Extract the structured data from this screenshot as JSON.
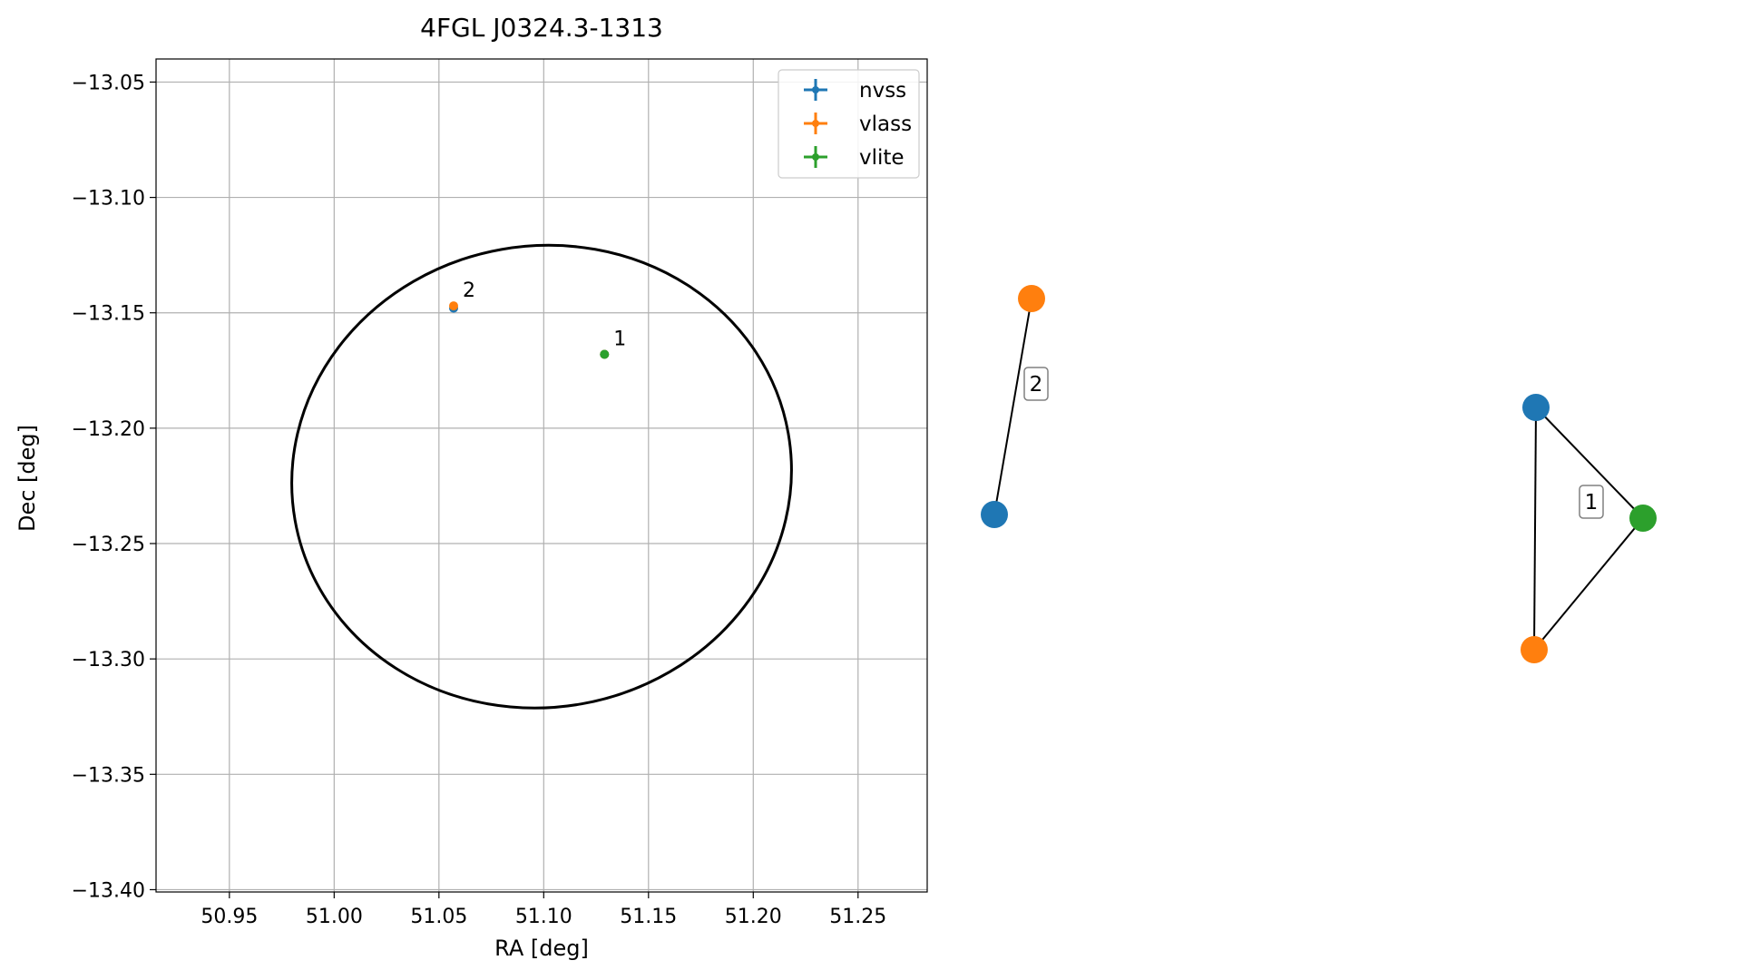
{
  "chart_data": [
    {
      "type": "scatter",
      "title": "4FGL J0324.3-1313",
      "xlabel": "RA [deg]",
      "ylabel": "Dec [deg]",
      "xlim": [
        50.915,
        51.283
      ],
      "ylim": [
        -13.401,
        -13.04
      ],
      "grid": true,
      "legend_position": "top-right",
      "x_ticks": [
        {
          "value": 50.95,
          "label": "50.95"
        },
        {
          "value": 51.0,
          "label": "51.00"
        },
        {
          "value": 51.05,
          "label": "51.05"
        },
        {
          "value": 51.1,
          "label": "51.10"
        },
        {
          "value": 51.15,
          "label": "51.15"
        },
        {
          "value": 51.2,
          "label": "51.20"
        },
        {
          "value": 51.25,
          "label": "51.25"
        }
      ],
      "y_ticks": [
        {
          "value": -13.05,
          "label": "−13.05"
        },
        {
          "value": -13.1,
          "label": "−13.10"
        },
        {
          "value": -13.15,
          "label": "−13.15"
        },
        {
          "value": -13.2,
          "label": "−13.20"
        },
        {
          "value": -13.25,
          "label": "−13.25"
        },
        {
          "value": -13.3,
          "label": "−13.30"
        },
        {
          "value": -13.35,
          "label": "−13.35"
        },
        {
          "value": -13.4,
          "label": "−13.40"
        }
      ],
      "series": [
        {
          "name": "nvss",
          "color": "#1f77b4",
          "points": [
            {
              "x": 51.057,
              "y": -13.148
            },
            {
              "x": 51.129,
              "y": -13.168
            }
          ]
        },
        {
          "name": "vlass",
          "color": "#ff7f0e",
          "points": [
            {
              "x": 51.057,
              "y": -13.147
            },
            {
              "x": 51.129,
              "y": -13.168
            }
          ]
        },
        {
          "name": "vlite",
          "color": "#2ca02c",
          "points": [
            {
              "x": 51.129,
              "y": -13.168
            }
          ]
        }
      ],
      "annotations": [
        {
          "text": "2",
          "x": 51.057,
          "y": -13.147
        },
        {
          "text": "1",
          "x": 51.129,
          "y": -13.168
        }
      ],
      "ellipse": {
        "center_ra": 51.099,
        "center_dec": -13.221,
        "color": "#000000",
        "extent_ra": [
          50.979,
          51.218
        ],
        "extent_dec": [
          -13.321,
          -13.121
        ]
      }
    },
    {
      "type": "network",
      "groups": [
        {
          "label": "2",
          "nodes": [
            {
              "name": "vlass",
              "color": "#ff7f0e"
            },
            {
              "name": "nvss",
              "color": "#1f77b4"
            }
          ],
          "edges": [
            [
              "nvss",
              "vlass"
            ]
          ]
        },
        {
          "label": "1",
          "nodes": [
            {
              "name": "nvss",
              "color": "#1f77b4"
            },
            {
              "name": "vlite",
              "color": "#2ca02c"
            },
            {
              "name": "vlass",
              "color": "#ff7f0e"
            }
          ],
          "edges": [
            [
              "nvss",
              "vlite"
            ],
            [
              "vlite",
              "vlass"
            ],
            [
              "nvss",
              "vlass"
            ]
          ]
        }
      ]
    }
  ]
}
